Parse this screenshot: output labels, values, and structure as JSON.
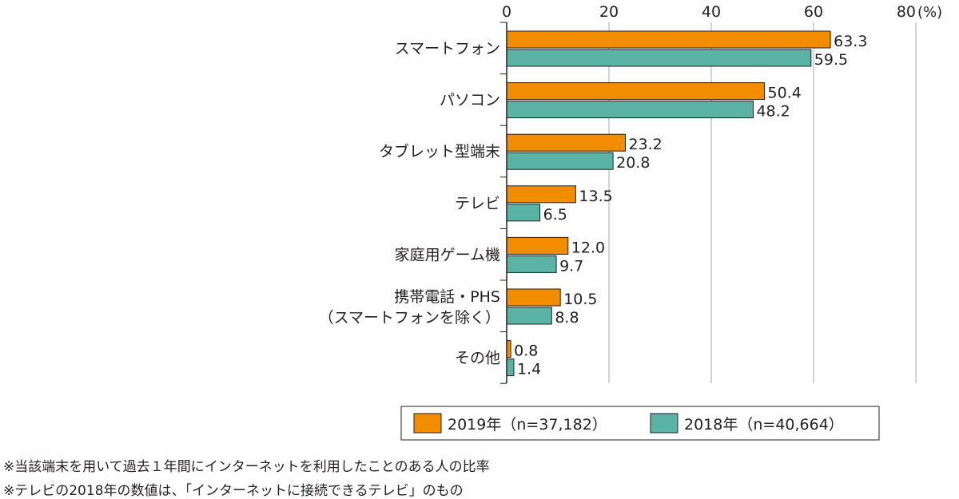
{
  "chart_data": {
    "type": "bar",
    "orientation": "horizontal",
    "x_axis_position": "top",
    "x_unit": "(%)",
    "xlim": [
      0,
      80
    ],
    "x_ticks": [
      "0",
      "20",
      "40",
      "60",
      "80"
    ],
    "grid": true,
    "legend_position": "bottom-right",
    "categories": [
      [
        "スマートフォン"
      ],
      [
        "パソコン"
      ],
      [
        "タブレット型端末"
      ],
      [
        "テレビ"
      ],
      [
        "家庭用ゲーム機"
      ],
      [
        "携帯電話・PHS",
        "（スマートフォンを除く）"
      ],
      [
        "その他"
      ]
    ],
    "series": [
      {
        "name": "2019年（n=37,182）",
        "color": "#f28c00",
        "values": [
          63.3,
          50.4,
          23.2,
          13.5,
          12.0,
          10.5,
          0.8
        ],
        "labels": [
          "63.3",
          "50.4",
          "23.2",
          "13.5",
          "12.0",
          "10.5",
          "0.8"
        ]
      },
      {
        "name": "2018年（n=40,664）",
        "color": "#5bb3a5",
        "values": [
          59.5,
          48.2,
          20.8,
          6.5,
          9.7,
          8.8,
          1.4
        ],
        "labels": [
          "59.5",
          "48.2",
          "20.8",
          "6.5",
          "9.7",
          "8.8",
          "1.4"
        ]
      }
    ]
  },
  "notes": [
    "※当該端末を用いて過去１年間にインターネットを利用したことのある人の比率",
    "※テレビの2018年の数値は、「インターネットに接続できるテレビ」のもの"
  ]
}
